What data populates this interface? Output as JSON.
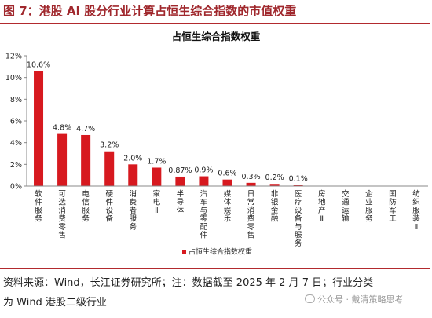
{
  "figure": {
    "title": "图 7：港股 AI 股分行业计算占恒生综合指数的市值权重"
  },
  "chart_data": {
    "type": "bar",
    "title": "占恒生综合指数权重",
    "ylim": [
      0,
      12
    ],
    "yticks": [
      "0%",
      "2%",
      "4%",
      "6%",
      "8%",
      "10%",
      "12%"
    ],
    "ytick_values": [
      0,
      2,
      4,
      6,
      8,
      10,
      12
    ],
    "grid": false,
    "legend_position": "bottom",
    "series": [
      {
        "name": "占恒生综合指数权重",
        "color": "#d7191f",
        "values": [
          10.6,
          4.8,
          4.7,
          3.2,
          2.0,
          1.7,
          0.87,
          0.9,
          0.6,
          0.3,
          0.2,
          0.1,
          0,
          0,
          0,
          0,
          0
        ],
        "labels": [
          "10.6%",
          "4.8%",
          "4.7%",
          "3.2%",
          "2.0%",
          "1.7%",
          "0.87%",
          "0.9%",
          "0.6%",
          "0.3%",
          "0.2%",
          "0.1%",
          "",
          "",
          "",
          "",
          ""
        ]
      }
    ],
    "categories": [
      "软件服务",
      "可选消费零售",
      "电信服务",
      "硬件设备",
      "消费者服务",
      "家电Ⅱ",
      "半导体",
      "汽车与零配件",
      "媒体娱乐",
      "日常消费零售",
      "非银金融",
      "医疗设备与服务",
      "房地产Ⅱ",
      "交通运输",
      "企业服务",
      "国防军工",
      "纺织服装Ⅱ"
    ]
  },
  "footer": {
    "source_line1": "资料来源：Wind，长江证券研究所；注：数据截至 2025 年 2 月 7 日；行业分类",
    "source_line2": "为 Wind 港股二级行业",
    "watermark": "公众号 · 戴清策略思考"
  }
}
